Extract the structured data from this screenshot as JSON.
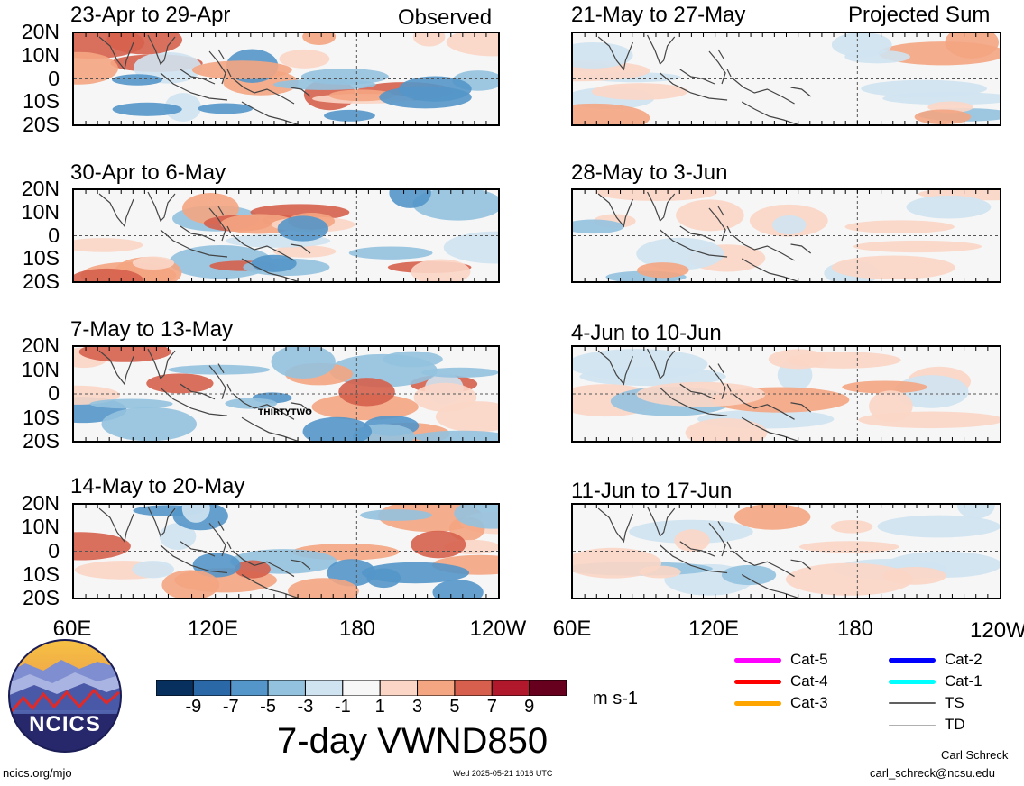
{
  "header": {
    "observed": "Observed",
    "projected": "Projected Sum"
  },
  "panels_left": [
    "23-Apr to 29-Apr",
    "30-Apr to 6-May",
    "7-May to 13-May",
    "14-May to 20-May"
  ],
  "panels_right": [
    "21-May to 27-May",
    "28-May to 3-Jun",
    "4-Jun to 10-Jun",
    "11-Jun to 17-Jun"
  ],
  "lat_labels": [
    "20N",
    "10N",
    "0",
    "10S",
    "20S"
  ],
  "lon_labels": [
    "60E",
    "120E",
    "180",
    "120W"
  ],
  "storm_label": "THIRTYTWO",
  "colorbar": {
    "ticks": [
      "-9",
      "-7",
      "-5",
      "-3",
      "-1",
      "1",
      "3",
      "5",
      "7",
      "9"
    ],
    "colors": [
      "#08305e",
      "#2a68a8",
      "#5496c9",
      "#93c2df",
      "#cfe3f1",
      "#f7f7f7",
      "#fbd6c6",
      "#f4a582",
      "#d6604d",
      "#b2182b",
      "#67001f"
    ],
    "units": "m s-1"
  },
  "chart_title": "7-day VWND850",
  "logo_text": "NCICS",
  "legend": [
    {
      "label": "Cat-5",
      "color": "#ff00ff"
    },
    {
      "label": "Cat-4",
      "color": "#ff0000"
    },
    {
      "label": "Cat-3",
      "color": "#ffa500"
    },
    {
      "label": "Cat-2",
      "color": "#0000ff"
    },
    {
      "label": "Cat-1",
      "color": "#00ffff"
    },
    {
      "label": "TS",
      "color": "#606060"
    },
    {
      "label": "TD",
      "color": "#b0b0b0"
    }
  ],
  "footer": {
    "url": "ncics.org/mjo",
    "timestamp": "Wed 2025-05-21 1016 UTC",
    "author": "Carl Schreck",
    "email": "carl_schreck@ncsu.edu"
  },
  "chart_data": {
    "type": "heatmap",
    "variable": "7-day VWND850",
    "units": "m s-1",
    "x_range": [
      "60E",
      "120W"
    ],
    "y_range": [
      "20S",
      "20N"
    ],
    "x_ticks": [
      "60E",
      "120E",
      "180",
      "120W"
    ],
    "y_ticks": [
      "20N",
      "10N",
      "0",
      "10S",
      "20S"
    ],
    "color_levels": [
      -9,
      -7,
      -5,
      -3,
      -1,
      1,
      3,
      5,
      7,
      9
    ],
    "panels": [
      {
        "column": "Observed",
        "period": "23-Apr to 29-Apr"
      },
      {
        "column": "Observed",
        "period": "30-Apr to 6-May"
      },
      {
        "column": "Observed",
        "period": "7-May to 13-May",
        "storms": [
          "THIRTYTWO"
        ]
      },
      {
        "column": "Observed",
        "period": "14-May to 20-May"
      },
      {
        "column": "Projected Sum",
        "period": "21-May to 27-May"
      },
      {
        "column": "Projected Sum",
        "period": "28-May to 3-Jun"
      },
      {
        "column": "Projected Sum",
        "period": "4-Jun to 10-Jun"
      },
      {
        "column": "Projected Sum",
        "period": "11-Jun to 17-Jun"
      }
    ]
  }
}
